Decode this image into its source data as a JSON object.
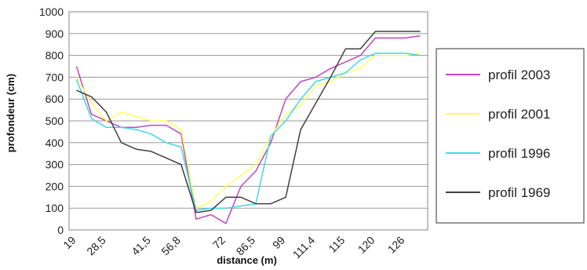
{
  "chart_data": {
    "type": "line",
    "xlabel": "distance (m)",
    "ylabel": "profondeur (cm)",
    "ylim": [
      0,
      1000
    ],
    "yticks": [
      "0",
      "100",
      "200",
      "300",
      "400",
      "500",
      "600",
      "700",
      "800",
      "900",
      "1000"
    ],
    "categories": [
      "19",
      "",
      "28,5",
      "",
      "",
      "41,5",
      "",
      "56,8",
      "",
      "",
      "72",
      "",
      "86,5",
      "",
      "99",
      "",
      "111,4",
      "",
      "115",
      "",
      "120",
      "",
      "126",
      ""
    ],
    "grid": "horizontal",
    "legend_position": "right",
    "series": [
      {
        "name": "profil 2003",
        "color": "#c048c0",
        "values": [
          750,
          530,
          500,
          470,
          470,
          480,
          480,
          440,
          50,
          70,
          30,
          200,
          270,
          400,
          600,
          680,
          700,
          740,
          770,
          800,
          880,
          880,
          880,
          890
        ]
      },
      {
        "name": "profil 2001",
        "color": "#ffff60",
        "values": [
          700,
          580,
          500,
          540,
          520,
          500,
          500,
          460,
          100,
          130,
          200,
          250,
          300,
          430,
          530,
          570,
          660,
          680,
          720,
          740,
          800,
          800,
          800,
          810
        ]
      },
      {
        "name": "profil 1996",
        "color": "#40d8ec",
        "values": [
          690,
          510,
          470,
          470,
          460,
          440,
          400,
          380,
          90,
          100,
          100,
          110,
          120,
          430,
          500,
          600,
          680,
          700,
          720,
          780,
          810,
          810,
          810,
          800
        ]
      },
      {
        "name": "profil 1969",
        "color": "#404040",
        "values": [
          640,
          610,
          540,
          400,
          370,
          360,
          330,
          300,
          80,
          90,
          150,
          150,
          120,
          120,
          150,
          460,
          580,
          700,
          830,
          830,
          910,
          910,
          910,
          910
        ]
      }
    ]
  }
}
